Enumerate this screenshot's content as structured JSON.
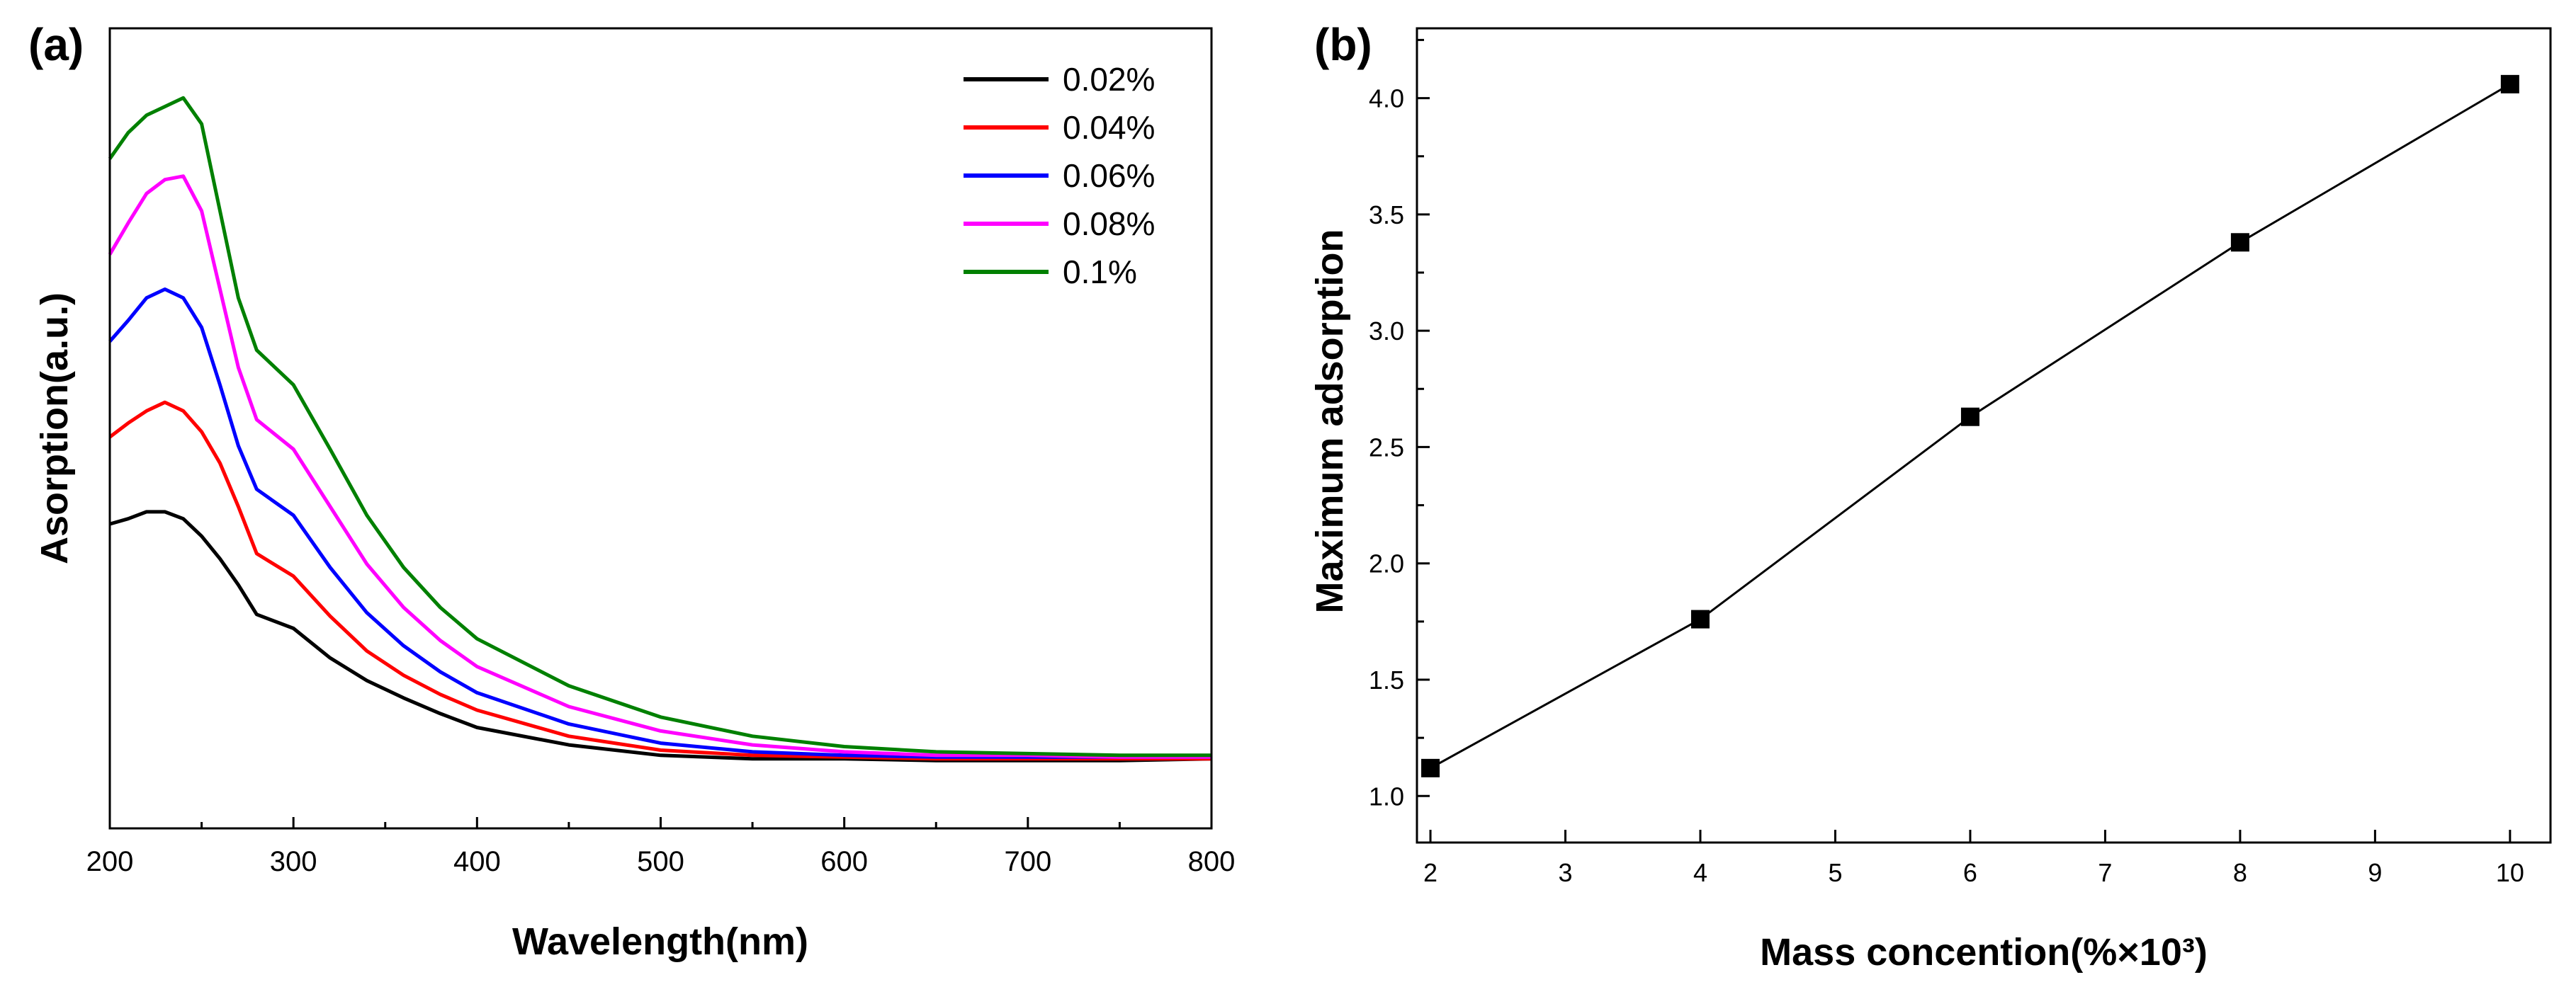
{
  "chart_data": [
    {
      "type": "line",
      "panel_label": "(a)",
      "title": "",
      "xlabel": "Wavelength(nm)",
      "ylabel": "Asorption(a.u.)",
      "xlim": [
        200,
        800
      ],
      "ylim": [
        0,
        4.6
      ],
      "y_ticks_labeled": false,
      "x_ticks": [
        200,
        300,
        400,
        500,
        600,
        700,
        800
      ],
      "x_tick_labels": [
        "200",
        "300",
        "400",
        "500",
        "600",
        "700",
        "800"
      ],
      "legend_position": "top-right",
      "grid": false,
      "x": [
        200,
        210,
        220,
        230,
        240,
        250,
        260,
        270,
        280,
        300,
        320,
        340,
        360,
        380,
        400,
        450,
        500,
        550,
        600,
        650,
        700,
        750,
        800
      ],
      "series": [
        {
          "name": "0.02%",
          "color": "#000000",
          "values": [
            1.75,
            1.78,
            1.82,
            1.82,
            1.78,
            1.68,
            1.55,
            1.4,
            1.23,
            1.15,
            0.98,
            0.85,
            0.75,
            0.66,
            0.58,
            0.48,
            0.42,
            0.4,
            0.4,
            0.39,
            0.39,
            0.39,
            0.4
          ]
        },
        {
          "name": "0.04%",
          "color": "#ff0000",
          "values": [
            2.25,
            2.33,
            2.4,
            2.45,
            2.4,
            2.28,
            2.1,
            1.85,
            1.58,
            1.45,
            1.22,
            1.02,
            0.88,
            0.77,
            0.68,
            0.53,
            0.45,
            0.42,
            0.41,
            0.4,
            0.4,
            0.4,
            0.4
          ]
        },
        {
          "name": "0.06%",
          "color": "#0000ff",
          "values": [
            2.8,
            2.92,
            3.05,
            3.1,
            3.05,
            2.88,
            2.55,
            2.2,
            1.95,
            1.8,
            1.5,
            1.24,
            1.05,
            0.9,
            0.78,
            0.6,
            0.49,
            0.44,
            0.42,
            0.41,
            0.41,
            0.41,
            0.41
          ]
        },
        {
          "name": "0.08%",
          "color": "#ff00ff",
          "values": [
            3.3,
            3.48,
            3.65,
            3.73,
            3.75,
            3.55,
            3.1,
            2.65,
            2.35,
            2.18,
            1.85,
            1.52,
            1.27,
            1.08,
            0.93,
            0.7,
            0.56,
            0.48,
            0.44,
            0.42,
            0.42,
            0.41,
            0.41
          ]
        },
        {
          "name": "0.1%",
          "color": "#008000",
          "values": [
            3.85,
            4.0,
            4.1,
            4.15,
            4.2,
            4.05,
            3.55,
            3.05,
            2.75,
            2.55,
            2.18,
            1.8,
            1.5,
            1.27,
            1.09,
            0.82,
            0.64,
            0.53,
            0.47,
            0.44,
            0.43,
            0.42,
            0.42
          ]
        }
      ]
    },
    {
      "type": "line",
      "panel_label": "(b)",
      "title": "",
      "xlabel": "Mass concention(%×10³)",
      "ylabel": "Maximum adsorption",
      "xlim": [
        1.9,
        10.3
      ],
      "ylim": [
        0.8,
        4.3
      ],
      "x_ticks": [
        2,
        3,
        4,
        5,
        6,
        7,
        8,
        9,
        10
      ],
      "x_tick_labels": [
        "2",
        "3",
        "4",
        "5",
        "6",
        "7",
        "8",
        "9",
        "10"
      ],
      "y_ticks": [
        1.0,
        1.5,
        2.0,
        2.5,
        3.0,
        3.5,
        4.0
      ],
      "y_tick_labels": [
        "1.0",
        "1.5",
        "2.0",
        "2.5",
        "3.0",
        "3.5",
        "4.0"
      ],
      "grid": false,
      "marker": "square",
      "series": [
        {
          "name": "Maximum adsorption",
          "color": "#000000",
          "x": [
            2,
            4,
            6,
            8,
            10
          ],
          "values": [
            1.12,
            1.76,
            2.63,
            3.38,
            4.06
          ]
        }
      ]
    }
  ]
}
